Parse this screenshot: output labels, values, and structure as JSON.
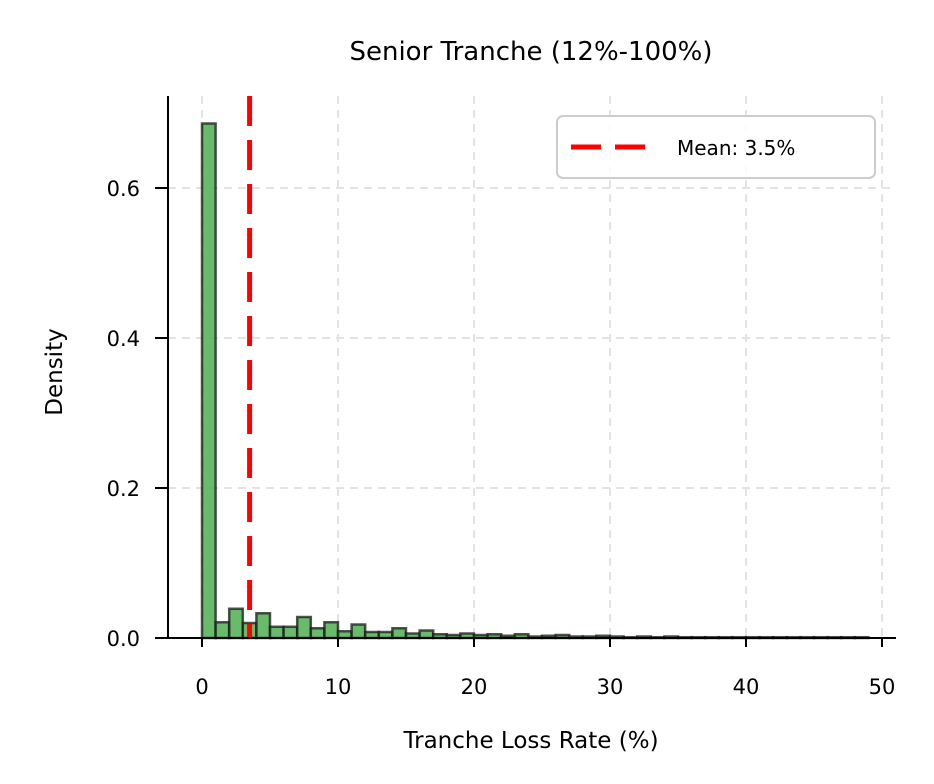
{
  "chart_data": {
    "type": "bar",
    "title": "Senior Tranche (12%-100%)",
    "xlabel": "Tranche Loss Rate (%)",
    "ylabel": "Density",
    "xlim": [
      -3.5,
      51
    ],
    "ylim": [
      0,
      0.72
    ],
    "xticks": [
      0,
      10,
      20,
      30,
      40,
      50
    ],
    "yticks": [
      0.0,
      0.2,
      0.4,
      0.6
    ],
    "ytick_labels": [
      "0.0",
      "0.2",
      "0.4",
      "0.6"
    ],
    "grid": true,
    "bin_width": 1.0,
    "bin_start": 0,
    "bar_color": "#4caf50",
    "bar_edge_color": "#1a1a1a",
    "values": [
      0.686,
      0.021,
      0.039,
      0.02,
      0.033,
      0.015,
      0.015,
      0.028,
      0.013,
      0.021,
      0.009,
      0.018,
      0.008,
      0.008,
      0.013,
      0.006,
      0.01,
      0.005,
      0.004,
      0.006,
      0.004,
      0.005,
      0.003,
      0.005,
      0.002,
      0.003,
      0.004,
      0.002,
      0.002,
      0.003,
      0.002,
      0.001,
      0.002,
      0.001,
      0.002,
      0.001,
      0.001,
      0.001,
      0.0008,
      0.0008,
      0.0007,
      0.0006,
      0.0005,
      0.0005,
      0.0004,
      0.0004,
      0.0003,
      0.0003,
      0.0002
    ],
    "annotations": [
      {
        "type": "vline",
        "x": 3.5,
        "color": "#ff0000",
        "style": "dashed",
        "label": "Mean: 3.5%"
      }
    ],
    "legend": {
      "position": "upper right",
      "entries": [
        "Mean: 3.5%"
      ]
    }
  }
}
